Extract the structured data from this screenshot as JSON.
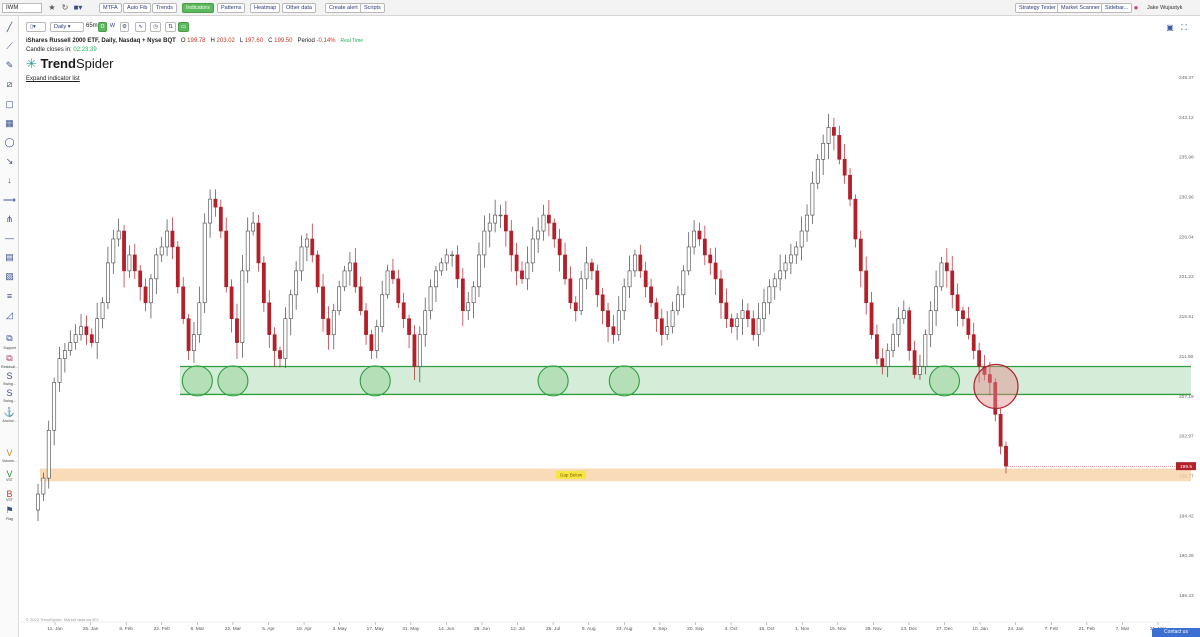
{
  "topbar": {
    "symbol": "IWM",
    "buttons": [
      "MTFA",
      "Auto Fib",
      "Trends",
      "Indicators",
      "Patterns",
      "Heatmap",
      "Other data",
      "Create alert",
      "Scripts"
    ],
    "active_button": "Indicators",
    "right_buttons": [
      "Strategy Tester",
      "Market Scanner",
      "Sidebar..."
    ],
    "user_name": "Jake Wujastyk"
  },
  "toolbar": {
    "timeframe": "Daily",
    "secondary_tf": "65m",
    "d_badge": "D",
    "w_badge": "W"
  },
  "header": {
    "title": "iShares Russell 2000 ETF, Daily, Nasdaq + Nyse BQT",
    "o_label": "O",
    "o_value": "199.78",
    "h_label": "H",
    "h_value": "203.02",
    "l_label": "L",
    "l_value": "197.60",
    "c_label": "C",
    "c_value": "199.50",
    "period_label": "Period",
    "period_value": "-0.14%",
    "realtime": "Real Time",
    "candle_label": "Candle closes in:",
    "candle_time": "02:23:39",
    "expand_link": "Expand indicator list"
  },
  "logo": {
    "part1": "Trend",
    "part2": "Spider"
  },
  "sidebar": {
    "labels": [
      "Support",
      "Residual...",
      "Swing...",
      "Swing...",
      "Anchor...",
      "Volume...",
      "VST",
      "VST",
      "Flag"
    ],
    "letters": [
      "S",
      "S",
      "V",
      "V",
      "B"
    ]
  },
  "copyright": "© 2022 TrendSpider. Market data via IEX",
  "contact": "Contact us",
  "chart_data": {
    "type": "candlestick",
    "title": "iShares Russell 2000 ETF, Daily, Nasdaq + Nyse BQT",
    "ylim": [
      181.2,
      248.2
    ],
    "y_ticks": [
      "248.37",
      "243.12",
      "235.98",
      "230.96",
      "226.04",
      "221.23",
      "216.51",
      "211.90",
      "207.19",
      "202.97",
      "198.77",
      "194.42",
      "190.28",
      "185.23"
    ],
    "x_ticks": [
      "11. Jan",
      "25. Jan",
      "8. Feb",
      "22. Feb",
      "8. Mar",
      "22. Mar",
      "5. Apr",
      "19. Apr",
      "3. May",
      "17. May",
      "31. May",
      "14. Jun",
      "28. Jun",
      "12. Jul",
      "26. Jul",
      "9. Aug",
      "23. Aug",
      "6. Sep",
      "20. Sep",
      "4. Oct",
      "18. Oct",
      "1. Nov",
      "15. Nov",
      "29. Nov",
      "13. Dec",
      "27. Dec",
      "10. Jan",
      "24. Jan",
      "7. Feb",
      "21. Feb",
      "7. Mar",
      "21. Mar"
    ],
    "current_price": "199.5",
    "zones": [
      {
        "name": "support",
        "color": "#2e9e3e",
        "low": 208.5,
        "high": 212.0
      },
      {
        "name": "gap",
        "label": "Gap Below",
        "color": "#f7cfa0",
        "low": 197.6,
        "high": 199.2
      }
    ],
    "circles": [
      {
        "date": "8. Mar",
        "price": 210.2,
        "color": "green"
      },
      {
        "date": "22. Mar",
        "price": 210.2,
        "color": "green"
      },
      {
        "date": "17. May",
        "price": 210.2,
        "color": "green"
      },
      {
        "date": "26. Jul",
        "price": 210.2,
        "color": "green"
      },
      {
        "date": "23. Aug",
        "price": 210.2,
        "color": "green"
      },
      {
        "date": "27. Dec",
        "price": 210.2,
        "color": "green"
      },
      {
        "date": "24. Jan",
        "price": 209.5,
        "color": "red"
      }
    ],
    "closes": [
      196,
      198,
      204,
      210,
      213,
      214,
      215,
      216,
      217,
      216,
      215,
      218,
      220,
      225,
      228,
      229,
      224,
      226,
      224,
      222,
      220,
      223,
      226,
      227,
      229,
      227,
      222,
      218,
      214,
      216,
      220,
      230,
      233,
      232,
      229,
      222,
      218,
      215,
      224,
      229,
      230,
      225,
      220,
      216,
      214,
      213,
      218,
      221,
      224,
      227,
      228,
      226,
      222,
      218,
      216,
      219,
      222,
      224,
      225,
      222,
      219,
      216,
      214,
      217,
      221,
      224,
      223,
      220,
      218,
      216,
      212,
      216,
      219,
      222,
      224,
      225,
      226,
      226,
      223,
      219,
      220,
      222,
      226,
      229,
      230,
      231,
      231,
      229,
      226,
      224,
      223,
      225,
      228,
      229,
      231,
      230,
      228,
      226,
      223,
      220,
      219,
      223,
      225,
      224,
      221,
      219,
      217,
      216,
      219,
      222,
      224,
      226,
      224,
      222,
      220,
      218,
      216,
      217,
      219,
      221,
      224,
      227,
      229,
      228,
      226,
      225,
      223,
      220,
      218,
      217,
      218,
      219,
      218,
      216,
      218,
      220,
      222,
      223,
      224,
      225,
      226,
      227,
      229,
      231,
      235,
      238,
      240,
      242,
      241,
      238,
      236,
      233,
      228,
      224,
      220,
      216,
      213,
      212,
      214,
      216,
      218,
      219,
      214,
      211,
      212,
      216,
      219,
      222,
      225,
      224,
      221,
      219,
      218,
      216,
      214,
      212,
      211,
      210,
      206,
      202,
      199.5
    ],
    "opens": [
      194,
      196,
      198,
      204,
      210,
      213,
      214,
      215,
      216,
      217,
      216,
      215,
      218,
      220,
      225,
      228,
      229,
      224,
      226,
      224,
      222,
      220,
      223,
      226,
      227,
      229,
      227,
      222,
      218,
      214,
      216,
      220,
      230,
      233,
      232,
      229,
      222,
      218,
      215,
      224,
      229,
      230,
      225,
      220,
      216,
      214,
      213,
      218,
      221,
      224,
      227,
      228,
      226,
      222,
      218,
      216,
      219,
      222,
      224,
      225,
      222,
      219,
      216,
      214,
      217,
      221,
      224,
      223,
      220,
      218,
      216,
      212,
      216,
      219,
      222,
      224,
      225,
      226,
      226,
      223,
      219,
      220,
      222,
      226,
      229,
      230,
      231,
      231,
      229,
      226,
      224,
      223,
      225,
      228,
      229,
      231,
      230,
      228,
      226,
      223,
      220,
      219,
      223,
      225,
      224,
      221,
      219,
      217,
      216,
      219,
      222,
      224,
      226,
      224,
      222,
      220,
      218,
      216,
      217,
      219,
      221,
      224,
      227,
      229,
      228,
      226,
      225,
      223,
      220,
      218,
      217,
      218,
      219,
      218,
      216,
      218,
      220,
      222,
      223,
      224,
      225,
      226,
      227,
      229,
      231,
      235,
      238,
      240,
      242,
      241,
      238,
      236,
      233,
      228,
      224,
      220,
      216,
      213,
      212,
      214,
      216,
      218,
      219,
      214,
      211,
      212,
      216,
      219,
      222,
      225,
      224,
      221,
      219,
      218,
      216,
      214,
      212,
      211,
      210,
      206,
      202,
      199.78
    ]
  }
}
